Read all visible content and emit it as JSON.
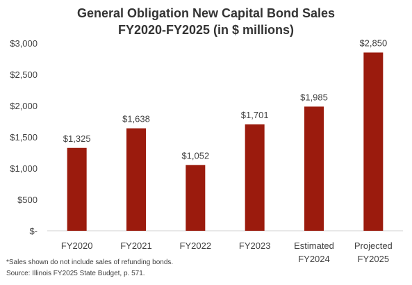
{
  "chart_data": {
    "type": "bar",
    "title_line1": "General Obligation New Capital Bond Sales",
    "title_line2": "FY2020-FY2025  (in $ millions)",
    "categories": [
      [
        "FY2020"
      ],
      [
        "FY2021"
      ],
      [
        "FY2022"
      ],
      [
        "FY2023"
      ],
      [
        "Estimated",
        "FY2024"
      ],
      [
        "Projected",
        "FY2025"
      ]
    ],
    "values": [
      1325,
      1638,
      1052,
      1701,
      1985,
      2850
    ],
    "value_labels": [
      "$1,325",
      "$1,638",
      "$1,052",
      "$1,701",
      "$1,985",
      "$2,850"
    ],
    "ylim": [
      0,
      3000
    ],
    "yticks": [
      0,
      500,
      1000,
      1500,
      2000,
      2500,
      3000
    ],
    "ytick_labels": [
      "$-",
      "$500",
      "$1,000",
      "$1,500",
      "$2,000",
      "$2,500",
      "$3,000"
    ],
    "bar_color": "#9B1B0D",
    "grid": false,
    "legend": "none"
  },
  "notes": {
    "line1": "*Sales shown do not include sales of refunding bonds.",
    "line2": "Source: Illinois FY2025 State Budget, p. 571."
  }
}
